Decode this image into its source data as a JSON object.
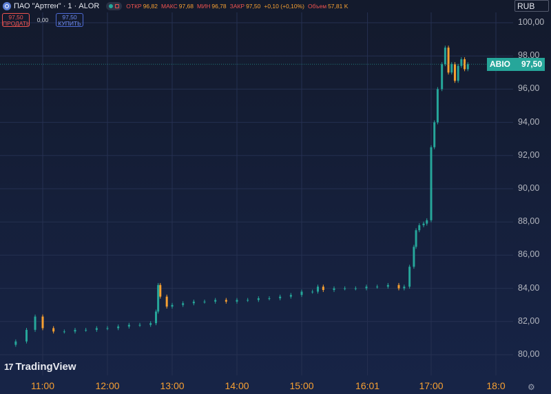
{
  "header": {
    "title": "ПАО \"Артген\" · 1 · ALOR",
    "ohlc": [
      {
        "label": "ОТКР",
        "value": "96,82"
      },
      {
        "label": "МАКС",
        "value": "97,68"
      },
      {
        "label": "МИН",
        "value": "96,78"
      },
      {
        "label": "ЗАКР",
        "value": "97,50"
      }
    ],
    "change": "+0,10 (+0,10%)",
    "volume_label": "Объем",
    "volume_value": "57,81 K"
  },
  "trade": {
    "sell_price": "97,50",
    "sell_label": "ПРОДАТЬ",
    "spread": "0,00",
    "buy_price": "97,50",
    "buy_label": "КУПИТЬ"
  },
  "currency": "RUB",
  "price_tag": {
    "symbol": "ABIO",
    "price": "97,50"
  },
  "logo_text": "TradingView",
  "colors": {
    "up": "#26a69a",
    "down": "#f7a032",
    "accent_axis": "#f7a032"
  },
  "icons": {
    "settings": "gear-icon",
    "symbol": "symbol-icon",
    "logo": "tradingview-logo-icon"
  },
  "chart_data": {
    "type": "line",
    "subtype": "candlestick",
    "xlabel": "",
    "ylabel": "",
    "ylim": [
      79,
      101
    ],
    "x_ticks": [
      "11:00",
      "12:00",
      "13:00",
      "14:00",
      "15:00",
      "16:01",
      "17:00",
      "18:0"
    ],
    "y_ticks": [
      "80,00",
      "82,00",
      "84,00",
      "86,00",
      "88,00",
      "90,00",
      "92,00",
      "94,00",
      "96,00",
      "98,00",
      "100,00"
    ],
    "grid": true,
    "series": [
      {
        "x": [
          "10:35",
          "10:45",
          "10:53",
          "11:00",
          "11:10",
          "11:20",
          "11:30",
          "11:40",
          "11:50",
          "12:00",
          "12:10",
          "12:20",
          "12:30",
          "12:40",
          "12:45",
          "12:47",
          "12:49",
          "12:55",
          "13:00",
          "13:10",
          "13:20",
          "13:30",
          "13:40",
          "13:50",
          "14:00",
          "14:10",
          "14:20",
          "14:30",
          "14:40",
          "14:50",
          "15:00",
          "15:10",
          "15:15",
          "15:20",
          "15:30",
          "15:40",
          "15:50",
          "16:00",
          "16:10",
          "16:20",
          "16:30",
          "16:35",
          "16:40",
          "16:44",
          "16:46",
          "16:49",
          "16:53",
          "16:56",
          "17:00",
          "17:03",
          "17:06",
          "17:10",
          "17:13",
          "17:16",
          "17:19",
          "17:22",
          "17:25",
          "17:28",
          "17:31",
          "17:34"
        ],
        "y": [
          80.8,
          81.5,
          82.3,
          81.6,
          81.4,
          81.4,
          81.5,
          81.5,
          81.6,
          81.6,
          81.7,
          81.8,
          81.8,
          81.9,
          82.6,
          84.2,
          83.5,
          82.9,
          83.0,
          83.1,
          83.2,
          83.2,
          83.3,
          83.2,
          83.3,
          83.3,
          83.4,
          83.4,
          83.5,
          83.6,
          83.8,
          83.8,
          84.1,
          83.9,
          84.0,
          84.0,
          84.0,
          84.1,
          84.1,
          84.2,
          84.0,
          84.1,
          85.3,
          86.5,
          87.5,
          87.8,
          87.9,
          88.1,
          92.5,
          94.0,
          96.0,
          97.5,
          98.5,
          97.0,
          97.5,
          96.5,
          97.4,
          97.8,
          97.2,
          97.5
        ]
      }
    ]
  }
}
